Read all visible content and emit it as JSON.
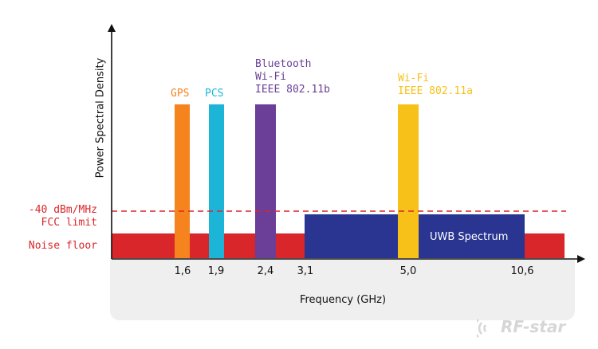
{
  "colors": {
    "noise_floor": "#d9262a",
    "fcc_line": "#d9262a",
    "uwb": "#2a3592",
    "gps": "#f5841f",
    "pcs": "#1cb5d8",
    "bluetooth": "#6b3e98",
    "wifi_5": "#f7c11a",
    "axis": "#111111",
    "panel": "#efefef"
  },
  "axes": {
    "y_label": "Power Spectral Density",
    "x_label": "Frequency (GHz)",
    "ticks": [
      "1,6",
      "1,9",
      "2,4",
      "3,1",
      "5,0",
      "10,6"
    ]
  },
  "levels": {
    "fcc_limit": "-40 dBm/MHz\nFCC limit",
    "noise_floor": "Noise floor"
  },
  "bands": {
    "gps": "GPS",
    "pcs": "PCS",
    "bluetooth": "Bluetooth\nWi-Fi\nIEEE 802.11b",
    "wifi_5": "Wi-Fi\nIEEE 802.11a",
    "uwb": "UWB Spectrum"
  },
  "watermark": {
    "brand": "RF-star"
  }
}
